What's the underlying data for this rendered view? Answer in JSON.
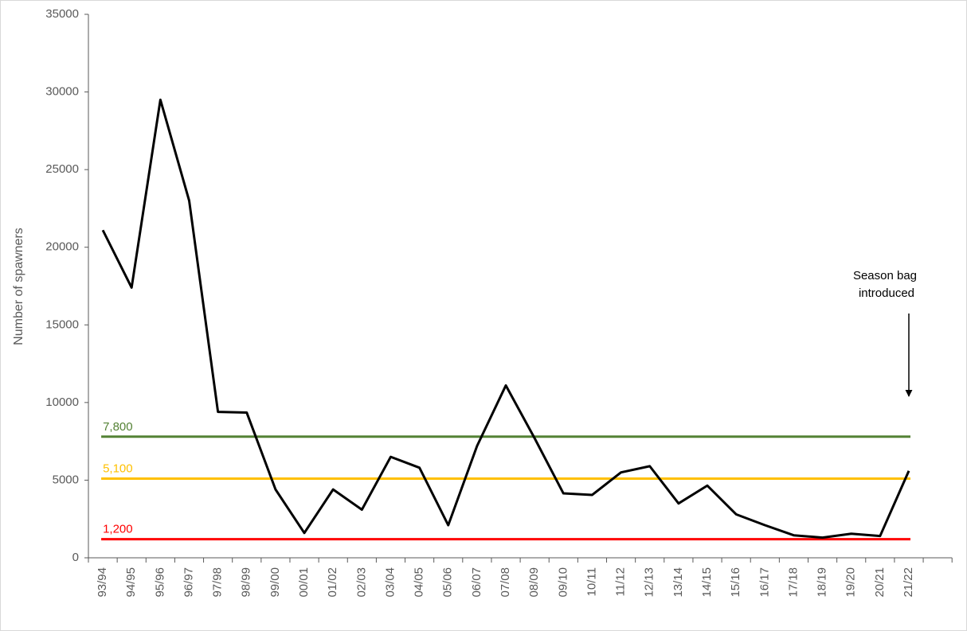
{
  "chart_data": {
    "type": "line",
    "y_label": "Number of spawners",
    "categories": [
      "93/94",
      "94/95",
      "95/96",
      "96/97",
      "97/98",
      "98/99",
      "99/00",
      "00/01",
      "01/02",
      "02/03",
      "03/04",
      "04/05",
      "05/06",
      "06/07",
      "07/08",
      "08/09",
      "09/10",
      "10/11",
      "11/12",
      "12/13",
      "13/14",
      "14/15",
      "15/16",
      "16/17",
      "17/18",
      "18/19",
      "19/20",
      "20/21",
      "21/22",
      null
    ],
    "values": [
      21100,
      17400,
      29500,
      23000,
      9400,
      9350,
      4400,
      1600,
      4400,
      3100,
      6500,
      5800,
      2100,
      7200,
      11100,
      7700,
      4150,
      4050,
      5500,
      5900,
      3500,
      4650,
      2800,
      2100,
      1450,
      1300,
      1550,
      1400,
      5600,
      null
    ],
    "color": "#000000",
    "ylim": [
      0,
      35000
    ],
    "yticks": [
      0,
      5000,
      10000,
      15000,
      20000,
      25000,
      30000,
      35000
    ],
    "grid": false,
    "reference_lines": [
      {
        "value": 7800,
        "label": "7,800",
        "color": "#548235"
      },
      {
        "value": 5100,
        "label": "5,100",
        "color": "#ffc000"
      },
      {
        "value": 1200,
        "label": "1,200",
        "color": "#ff0000"
      }
    ],
    "annotation": [
      "Season bag",
      "introduced"
    ]
  }
}
